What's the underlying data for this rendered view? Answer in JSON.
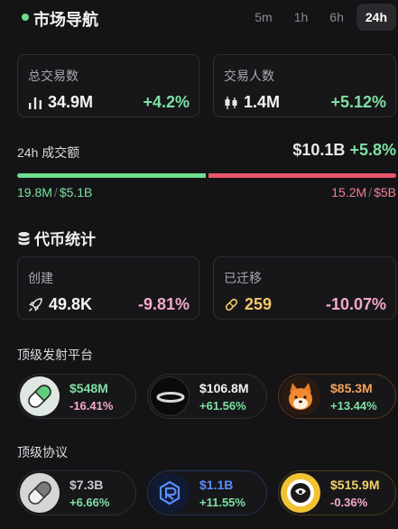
{
  "header": {
    "title": "市场导航",
    "tabs": [
      {
        "label": "5m",
        "active": false
      },
      {
        "label": "1h",
        "active": false
      },
      {
        "label": "6h",
        "active": false
      },
      {
        "label": "24h",
        "active": true
      }
    ]
  },
  "stats": {
    "total_trades": {
      "label": "总交易数",
      "value": "34.9M",
      "change": "+4.2%",
      "icon": "bar-chart-icon"
    },
    "traders": {
      "label": "交易人数",
      "value": "1.4M",
      "change": "+5.12%",
      "icon": "candlestick-icon"
    }
  },
  "volume": {
    "label": "24h 成交额",
    "total": "$10.1B",
    "change": "+5.8%",
    "buy_fraction": 0.5,
    "buy_count": "19.8M",
    "buy_amount": "$5.1B",
    "sell_count": "15.2M",
    "sell_amount": "$5B",
    "sep": "/",
    "colors": {
      "buy": "#6fdc8c",
      "sell": "#e8556b"
    }
  },
  "tokens": {
    "title": "代币统计",
    "created": {
      "label": "创建",
      "value": "49.8K",
      "change": "-9.81%",
      "icon": "rocket-icon"
    },
    "migrated": {
      "label": "已迁移",
      "value": "259",
      "change": "-10.07%",
      "icon": "pill-icon"
    }
  },
  "launchpads": {
    "title": "顶级发射平台",
    "items": [
      {
        "value": "$548M",
        "change": "-16.41%",
        "logo": "pump-pill-logo"
      },
      {
        "value": "$106.8M",
        "change": "+61.56%",
        "logo": "ring-logo"
      },
      {
        "value": "$85.3M",
        "change": "+13.44%",
        "logo": "shiba-dog-logo"
      }
    ]
  },
  "protocols": {
    "title": "顶级协议",
    "items": [
      {
        "value": "$7.3B",
        "change": "+6.66%",
        "logo": "grey-pill-logo"
      },
      {
        "value": "$1.1B",
        "change": "+11.55%",
        "logo": "raydium-logo"
      },
      {
        "value": "$515.9M",
        "change": "-0.36%",
        "logo": "gold-coin-logo"
      }
    ]
  }
}
